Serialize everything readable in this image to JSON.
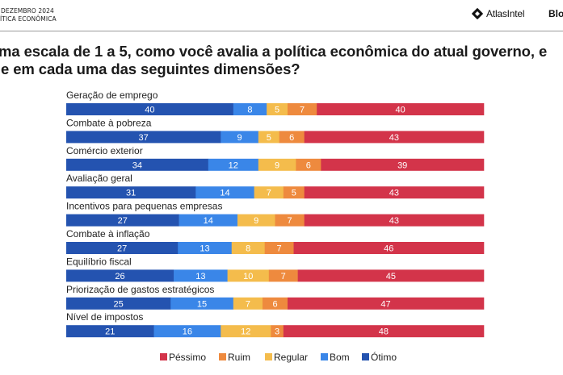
{
  "header": {
    "date_line": "DEZEMBRO 2024",
    "topic_line": "ÍTICA ECONÔMICA",
    "brand_name": "AtlasIntel",
    "nav_item": "Blo"
  },
  "title": {
    "line1": "ma escala de 1 a 5, como você avalia a política econômica do atual governo, e",
    "line2": "e em cada uma das seguintes dimensões?"
  },
  "chart_data": {
    "type": "bar",
    "orientation": "horizontal",
    "stacked": true,
    "percent": true,
    "title": "ma escala de 1 a 5, como você avalia a política econômica do atual governo, e e em cada uma das seguintes dimensões?",
    "xlabel": "",
    "ylabel": "",
    "xlim": [
      0,
      100
    ],
    "grid": false,
    "legend_position": "bottom",
    "categories": [
      "Geração de emprego",
      "Combate à pobreza",
      "Comércio exterior",
      "Avaliação geral",
      "Incentivos para pequenas empresas",
      "Combate à inflação",
      "Equilíbrio fiscal",
      "Priorização de gastos estratégicos",
      "Nível de impostos"
    ],
    "series": [
      {
        "name": "Ótimo",
        "color": "#2453b0",
        "values": [
          40,
          37,
          34,
          31,
          27,
          27,
          26,
          25,
          21
        ]
      },
      {
        "name": "Bom",
        "color": "#3a86e8",
        "values": [
          8,
          9,
          12,
          14,
          14,
          13,
          13,
          15,
          16
        ]
      },
      {
        "name": "Regular",
        "color": "#f4bc4c",
        "values": [
          5,
          5,
          9,
          7,
          9,
          8,
          10,
          7,
          12
        ]
      },
      {
        "name": "Ruim",
        "color": "#ee8a3e",
        "values": [
          7,
          6,
          6,
          5,
          7,
          7,
          7,
          6,
          3
        ]
      },
      {
        "name": "Péssimo",
        "color": "#d3344a",
        "values": [
          40,
          43,
          39,
          43,
          43,
          46,
          45,
          47,
          48
        ]
      }
    ],
    "legend_order": [
      "Péssimo",
      "Ruim",
      "Regular",
      "Bom",
      "Ótimo"
    ]
  }
}
